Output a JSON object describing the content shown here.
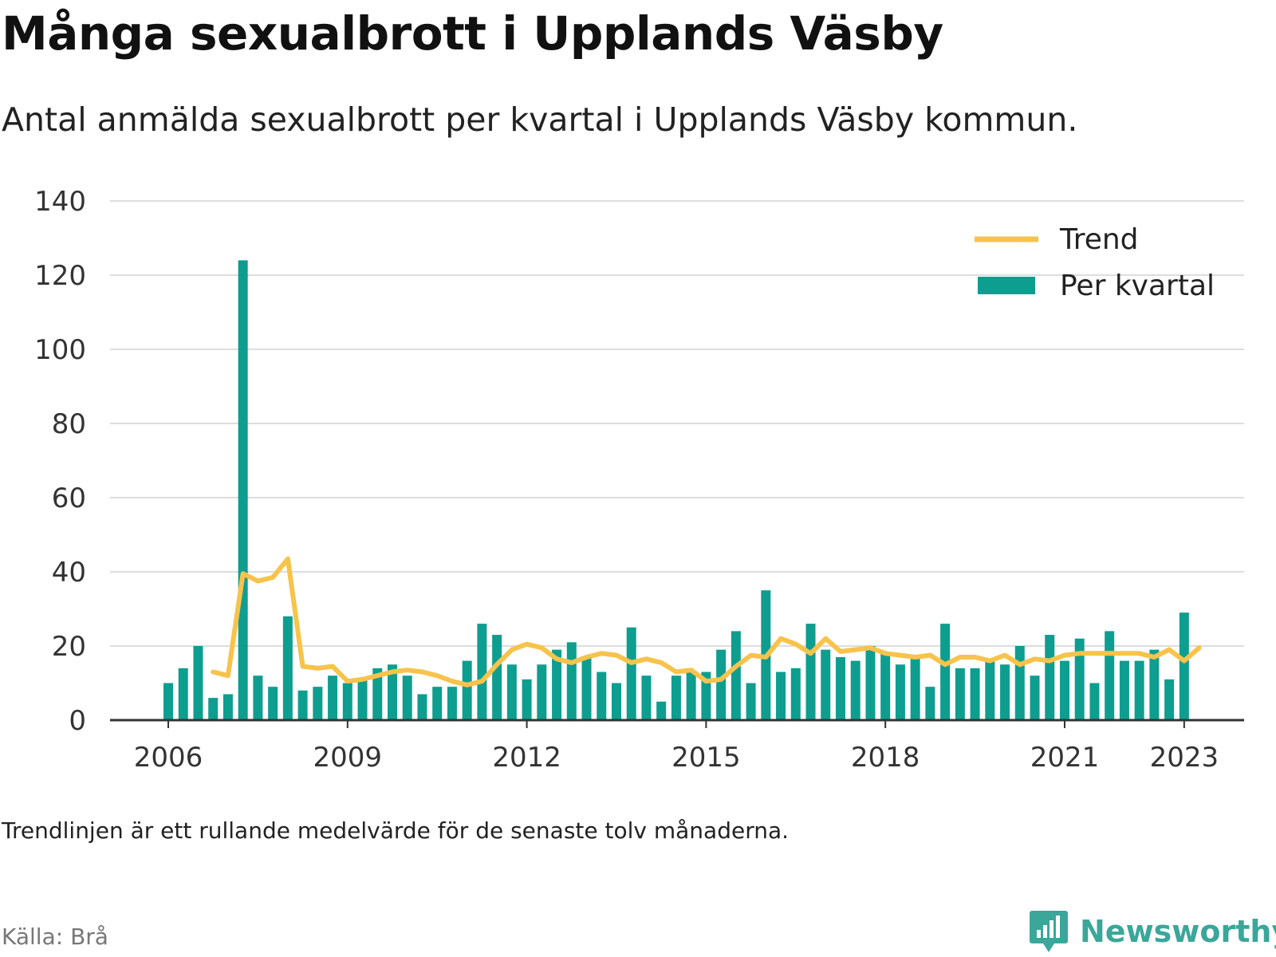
{
  "title": "Många sexualbrott i Upplands Väsby",
  "subtitle": "Antal anmälda sexualbrott per kvartal i Upplands Väsby kommun.",
  "note": "Trendlinjen är ett rullande medelvärde för de senaste tolv månaderna.",
  "source": "Källa: Brå",
  "brand": {
    "name": "Newsworthy",
    "icon": "newsworthy-logo-icon"
  },
  "colors": {
    "bars": "#0d9e8f",
    "trend": "#f7c34b",
    "grid": "#dddddd",
    "axis": "#333333",
    "brand": "#3aa79a"
  },
  "chart_data": {
    "type": "bar",
    "title": "Många sexualbrott i Upplands Väsby",
    "ylim": [
      0,
      140
    ],
    "yticks": [
      0,
      20,
      40,
      60,
      80,
      100,
      120,
      140
    ],
    "x_ticks": [
      "2006",
      "2009",
      "2012",
      "2015",
      "2018",
      "2021",
      "2023"
    ],
    "x_tick_quarter_index": [
      0,
      12,
      24,
      36,
      48,
      60,
      68
    ],
    "x_range": [
      "2006 K1",
      "2023 K1"
    ],
    "grid": true,
    "legend": {
      "placement": "top-right",
      "entries": [
        "Trend",
        "Per kvartal"
      ]
    },
    "series": [
      {
        "name": "Per kvartal",
        "kind": "bar",
        "values": [
          10,
          14,
          20,
          6,
          7,
          124,
          12,
          9,
          28,
          8,
          9,
          12,
          10,
          11,
          14,
          15,
          12,
          7,
          9,
          9,
          16,
          26,
          23,
          15,
          11,
          15,
          19,
          21,
          17,
          13,
          10,
          25,
          12,
          5,
          12,
          13,
          13,
          19,
          24,
          10,
          35,
          13,
          14,
          26,
          19,
          17,
          16,
          20,
          18,
          15,
          17,
          9,
          26,
          14,
          14,
          16,
          15,
          20,
          12,
          23,
          16,
          22,
          10,
          24,
          16,
          16,
          19,
          11,
          29
        ]
      },
      {
        "name": "Trend",
        "kind": "line",
        "start_quarter_index": 3,
        "values": [
          13,
          12,
          39.5,
          37.5,
          38.5,
          43.5,
          14.5,
          14,
          14.5,
          10.5,
          11,
          12,
          13,
          13.5,
          13,
          12,
          10.5,
          9.5,
          10.5,
          15,
          19,
          20.5,
          19.5,
          16.5,
          15.5,
          17,
          18,
          17.5,
          15.5,
          16.5,
          15.5,
          13,
          13.5,
          10.5,
          11,
          14.5,
          17.5,
          17,
          22,
          20.5,
          18,
          22,
          18.5,
          19,
          19.5,
          18,
          17.5,
          17,
          17.5,
          15,
          17,
          17,
          16,
          17.5,
          15,
          16.5,
          16,
          17.5,
          18,
          18,
          18,
          18,
          18,
          17,
          19,
          16,
          19.5
        ]
      }
    ]
  }
}
